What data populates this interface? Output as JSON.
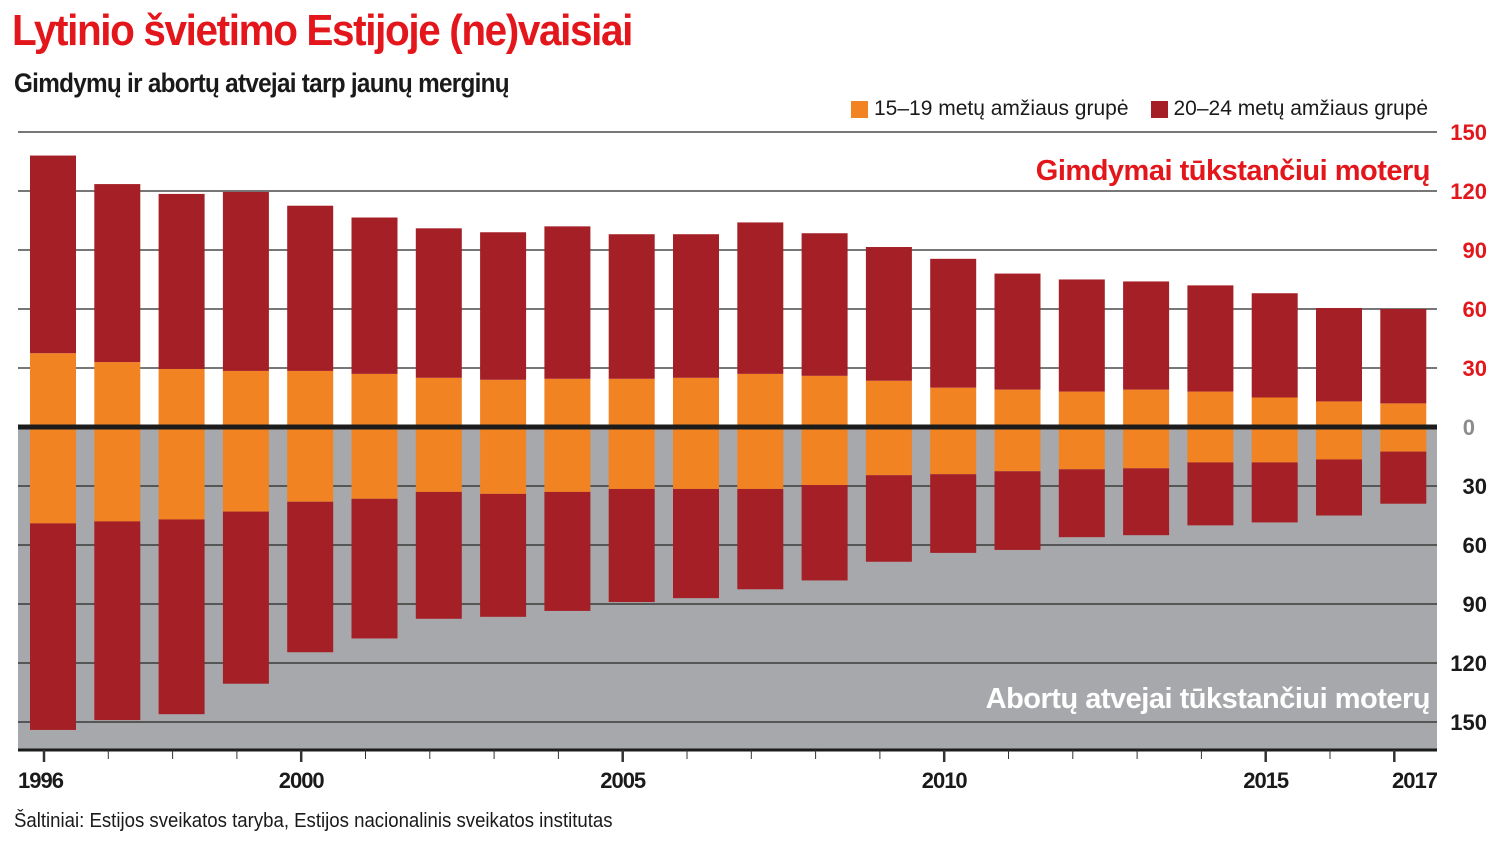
{
  "header": {
    "title": "Lytinio švietimo Estijoje (ne)vaisiai",
    "subtitle": "Gimdymų ir abortų atvejai tarp jaunų merginų"
  },
  "footer": {
    "source": "Šaltiniai: Estijos sveikatos taryba, Estijos nacionalinis sveikatos institutas"
  },
  "colors": {
    "title_red": "#e3161b",
    "age_15_19": "#f28322",
    "age_20_24": "#a51f26",
    "lower_panel_bg": "#a7a8ab",
    "zero_line": "#1c1c1c"
  },
  "chart_data": {
    "type": "bar",
    "stacked": true,
    "diverging": true,
    "title": "Lytinio švietimo Estijoje (ne)vaisiai",
    "subtitle": "Gimdymų ir abortų atvejai tarp jaunų merginų",
    "legend": {
      "position": "top-right",
      "entries": [
        "15–19 metų amžiaus grupė",
        "20–24 metų amžiaus grupė"
      ]
    },
    "upper_panel_label": "Gimdymai tūkstančiui moterų",
    "lower_panel_label": "Abortų atvejai tūkstančiui moterų",
    "categories": [
      1996,
      1997,
      1998,
      1999,
      2000,
      2001,
      2002,
      2003,
      2004,
      2005,
      2006,
      2007,
      2008,
      2009,
      2010,
      2011,
      2012,
      2013,
      2014,
      2015,
      2016,
      2017
    ],
    "x_tick_labels": [
      "1996",
      "2000",
      "2005",
      "2010",
      "2015",
      "2017"
    ],
    "y_ticks_upper": [
      "150",
      "120",
      "90",
      "60",
      "30"
    ],
    "y_tick_zero": "0",
    "y_ticks_lower": [
      "30",
      "60",
      "90",
      "120",
      "150"
    ],
    "ylim": [
      -165,
      150
    ],
    "grid": true,
    "births": {
      "note": "Stacked totals shown above zero line; values per 1000 women",
      "age_15_19": [
        37.5,
        33,
        29.5,
        28.5,
        28.5,
        27,
        25,
        24,
        24.5,
        24.5,
        25,
        27,
        26,
        23.5,
        20,
        19,
        18,
        19,
        18,
        15,
        13,
        12
      ],
      "age_20_24": [
        100.5,
        90.5,
        89,
        91,
        84,
        79.5,
        76,
        75,
        77.5,
        73.5,
        73,
        77,
        72.5,
        68,
        65.5,
        59,
        57,
        55,
        54,
        53,
        47.5,
        48
      ]
    },
    "abortions": {
      "note": "Stacked totals shown below zero line; values per 1000 women",
      "age_15_19": [
        49,
        48,
        47,
        43,
        38,
        36.5,
        33,
        34,
        33,
        31.5,
        31.5,
        31.5,
        29.5,
        24.5,
        24,
        22.5,
        21.5,
        21,
        18,
        18,
        16.5,
        12.5
      ],
      "age_20_24": [
        105,
        101,
        99,
        87.5,
        76.5,
        71,
        64.5,
        62.5,
        60.5,
        57.5,
        55.5,
        51,
        48.5,
        44,
        40,
        40,
        34.5,
        34,
        32,
        30.5,
        28.5,
        26.5
      ]
    }
  }
}
